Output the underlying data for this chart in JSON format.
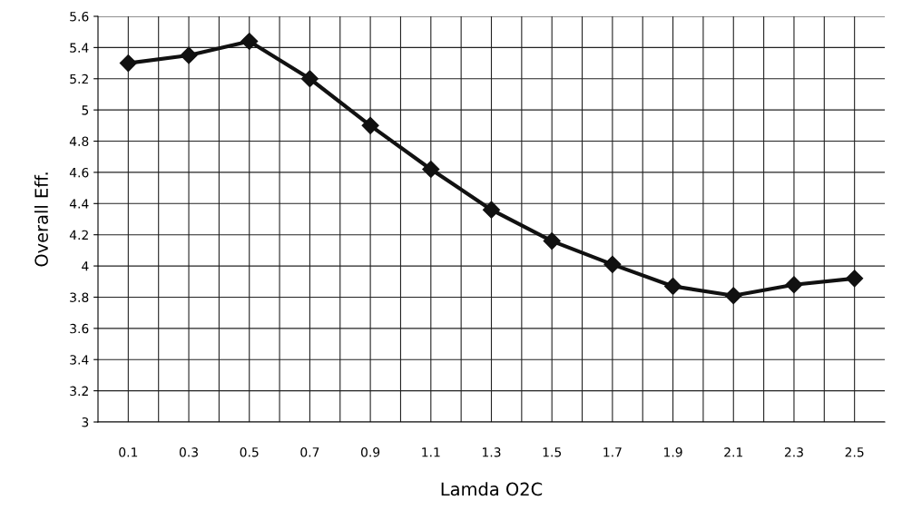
{
  "chart_data": {
    "type": "line",
    "xlabel": "Lamda O2C",
    "ylabel": "Overall Eff.",
    "categories": [
      "0.1",
      "0.3",
      "0.5",
      "0.7",
      "0.9",
      "1.1",
      "1.3",
      "1.5",
      "1.7",
      "1.9",
      "2.1",
      "2.3",
      "2.5"
    ],
    "series": [
      {
        "color": "#111111",
        "values": [
          5.3,
          5.35,
          5.44,
          5.2,
          4.9,
          4.62,
          4.36,
          4.16,
          4.01,
          3.87,
          3.81,
          3.88,
          3.92
        ]
      }
    ],
    "ylim": [
      3,
      5.6
    ],
    "yticks": [
      3,
      3.2,
      3.4,
      3.6,
      3.8,
      4,
      4.2,
      4.4,
      4.6,
      4.8,
      5,
      5.2,
      5.4,
      5.6
    ],
    "grid": true,
    "marker": "diamond",
    "line_style": "solid"
  }
}
